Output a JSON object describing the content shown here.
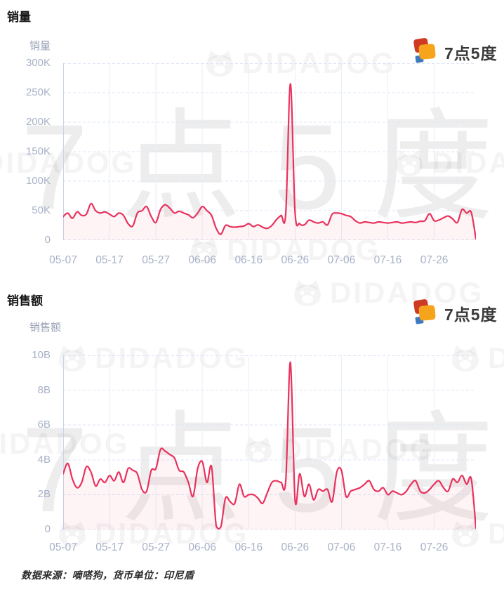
{
  "brand": {
    "name": "7点5度",
    "watermark_large": "7点5度",
    "watermark_small": "DIDADOG",
    "logo_colors": {
      "red": "#cf3a25",
      "orange": "#f7a41d",
      "blue": "#3e7abf"
    }
  },
  "footer": {
    "text": "数据来源：嘀嗒狗，货币单位：印尼盾"
  },
  "chart_data": [
    {
      "type": "line",
      "title": "销量",
      "series_label": "销量",
      "line_color": "#e8325d",
      "area_color": "rgba(232,50,93,0.055)",
      "grid": true,
      "legend_position": "none",
      "ylim": [
        0,
        300
      ],
      "y_unit": "K",
      "y_ticks": [
        "300K",
        "250K",
        "200K",
        "150K",
        "100K",
        "50K",
        "0"
      ],
      "x_start_date": "05-07",
      "x_tick_labels": [
        "05-07",
        "05-17",
        "05-27",
        "06-06",
        "06-16",
        "06-26",
        "07-06",
        "07-16",
        "07-26"
      ],
      "x_tick_indices": [
        0,
        10,
        20,
        30,
        40,
        50,
        60,
        70,
        80
      ],
      "values_unit": "thousands",
      "values": [
        40,
        46,
        37,
        48,
        42,
        44,
        62,
        50,
        46,
        48,
        44,
        40,
        46,
        42,
        28,
        24,
        46,
        50,
        57,
        40,
        30,
        52,
        60,
        54,
        46,
        49,
        46,
        43,
        38,
        46,
        57,
        50,
        42,
        20,
        10,
        25,
        23,
        22,
        23,
        24,
        28,
        23,
        26,
        22,
        20,
        25,
        35,
        42,
        46,
        265,
        48,
        28,
        26,
        34,
        31,
        29,
        31,
        26,
        44,
        46,
        45,
        42,
        40,
        33,
        29,
        31,
        30,
        29,
        31,
        30,
        29,
        30,
        31,
        29,
        30,
        31,
        30,
        32,
        33,
        45,
        33,
        34,
        38,
        41,
        36,
        30,
        52,
        46,
        47,
        2
      ]
    },
    {
      "type": "line",
      "title": "销售额",
      "series_label": "销售额",
      "line_color": "#e8325d",
      "area_color": "rgba(232,50,93,0.055)",
      "grid": true,
      "legend_position": "none",
      "ylim": [
        0,
        10
      ],
      "y_unit": "B",
      "y_ticks": [
        "10B",
        "8B",
        "6B",
        "4B",
        "2B",
        "0"
      ],
      "x_start_date": "05-07",
      "x_tick_labels": [
        "05-07",
        "05-17",
        "05-27",
        "06-06",
        "06-16",
        "06-26",
        "07-06",
        "07-16",
        "07-26"
      ],
      "x_tick_indices": [
        0,
        10,
        20,
        30,
        40,
        50,
        60,
        70,
        80
      ],
      "values_unit": "billions",
      "values": [
        3.2,
        3.8,
        2.9,
        2.4,
        2.7,
        3.6,
        3.3,
        2.5,
        2.9,
        2.7,
        3.1,
        2.8,
        3.3,
        2.7,
        3.5,
        3.4,
        3.2,
        2.3,
        2.2,
        3.4,
        3.5,
        4.6,
        4.5,
        4.3,
        4.1,
        3.4,
        3.3,
        2.7,
        1.9,
        3.5,
        3.9,
        2.7,
        3.6,
        0.2,
        0.15,
        1.8,
        1.6,
        1.5,
        2.6,
        1.9,
        2.0,
        2.0,
        1.8,
        1.5,
        2.1,
        2.7,
        2.8,
        2.7,
        2.8,
        9.6,
        1.7,
        3.2,
        1.9,
        2.6,
        1.7,
        2.3,
        2.2,
        2.3,
        1.6,
        3.3,
        3.4,
        1.9,
        2.2,
        2.3,
        2.4,
        2.6,
        2.8,
        2.3,
        2.2,
        2.4,
        2.0,
        2.2,
        2.1,
        2.0,
        2.2,
        2.6,
        2.8,
        2.2,
        2.1,
        2.3,
        2.6,
        2.8,
        2.4,
        2.2,
        2.9,
        2.7,
        3.1,
        2.6,
        2.9,
        0.08
      ]
    }
  ]
}
